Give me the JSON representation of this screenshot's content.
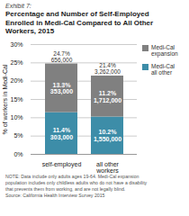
{
  "chart_data": {
    "type": "bar",
    "stacked": true,
    "subtitle": "Exhibit 7:",
    "title": "Percentage and Number of Self-Employed\nEnrolled in Medi-Cal Compared to All Other\nWorkers, 2015",
    "categories": [
      "self-employed",
      "all other workers"
    ],
    "series": [
      {
        "name": "Medi-Cal\nall other",
        "color": "#3d8da8",
        "values": [
          11.4,
          10.2
        ],
        "value_labels": [
          "11.4%",
          "10.2%"
        ],
        "count_labels": [
          "303,000",
          "1,550,000"
        ]
      },
      {
        "name": "Medi-Cal\nexpansion",
        "color": "#808080",
        "values": [
          13.3,
          11.2
        ],
        "value_labels": [
          "13.3%",
          "11.2%"
        ],
        "count_labels": [
          "353,000",
          "1,712,000"
        ]
      }
    ],
    "totals": [
      24.7,
      21.4
    ],
    "total_labels": [
      "24.7%",
      "21.4%"
    ],
    "total_count_labels": [
      "656,000",
      "3,262,000"
    ],
    "ylabel": "% of workers in Medi-Cal",
    "ylim": [
      0,
      30
    ],
    "yticks": [
      {
        "value": 0,
        "label": "0%"
      },
      {
        "value": 5,
        "label": "5%"
      },
      {
        "value": 10,
        "label": "10%"
      },
      {
        "value": 15,
        "label": "15%"
      },
      {
        "value": 20,
        "label": "20%"
      },
      {
        "value": 25,
        "label": "25%"
      },
      {
        "value": 30,
        "label": "30%"
      }
    ],
    "grid": true,
    "data_labels": true,
    "legend": "right",
    "annotations": [
      "NOTE: Data include only adults ages 19-64. Medi-Cal expansion",
      "population includes only childless adults who do not have a disability",
      "that prevents them from working, and are not legally blind.",
      "Source: California Health Interview Survey 2015"
    ]
  }
}
